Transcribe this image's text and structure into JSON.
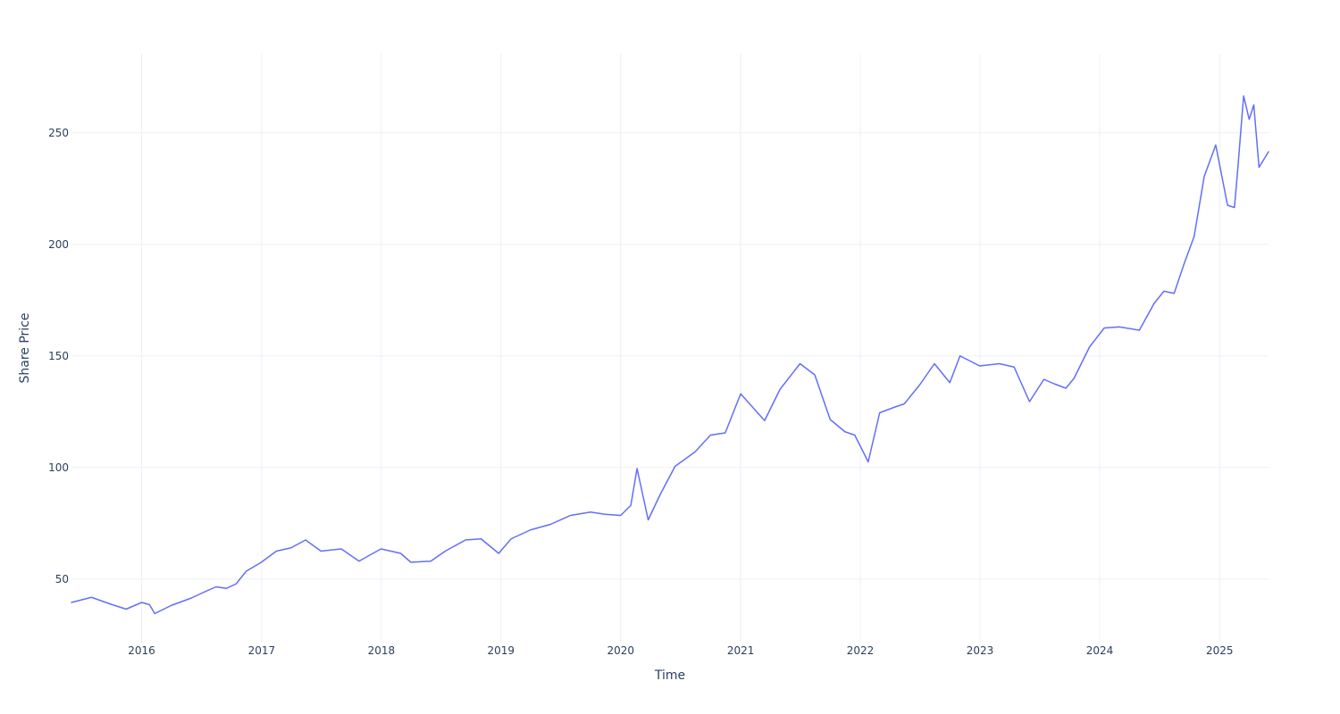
{
  "chart_data": {
    "type": "line",
    "title": "",
    "xlabel": "Time",
    "ylabel": "Share Price",
    "x_range": [
      "2015-06-01",
      "2025-05-30"
    ],
    "ylim": [
      21.5,
      285.5
    ],
    "x_tick_labels": [
      "2016",
      "2017",
      "2018",
      "2019",
      "2020",
      "2021",
      "2022",
      "2023",
      "2024",
      "2025"
    ],
    "y_ticks": [
      50,
      100,
      150,
      200,
      250
    ],
    "grid": true,
    "line_color": "#636efa",
    "series": [
      {
        "values": [
          [
            "2015-06-01",
            39.5
          ],
          [
            "2015-08-01",
            41.8
          ],
          [
            "2015-10-01",
            38.6
          ],
          [
            "2015-11-15",
            36.5
          ],
          [
            "2016-01-01",
            39.5
          ],
          [
            "2016-01-25",
            38.5
          ],
          [
            "2016-02-10",
            34.5
          ],
          [
            "2016-04-01",
            38.2
          ],
          [
            "2016-06-01",
            41.5
          ],
          [
            "2016-07-15",
            44.5
          ],
          [
            "2016-08-15",
            46.5
          ],
          [
            "2016-09-15",
            45.8
          ],
          [
            "2016-10-15",
            47.8
          ],
          [
            "2016-11-15",
            53.5
          ],
          [
            "2016-12-31",
            57.5
          ],
          [
            "2017-02-15",
            62.5
          ],
          [
            "2017-04-01",
            64.0
          ],
          [
            "2017-05-15",
            67.5
          ],
          [
            "2017-07-01",
            62.5
          ],
          [
            "2017-09-01",
            63.5
          ],
          [
            "2017-10-25",
            58.0
          ],
          [
            "2017-12-31",
            63.5
          ],
          [
            "2018-03-01",
            61.5
          ],
          [
            "2018-04-01",
            57.5
          ],
          [
            "2018-06-01",
            58.0
          ],
          [
            "2018-07-15",
            62.5
          ],
          [
            "2018-09-15",
            67.5
          ],
          [
            "2018-11-01",
            68.0
          ],
          [
            "2018-12-25",
            61.5
          ],
          [
            "2019-02-01",
            68.0
          ],
          [
            "2019-04-01",
            72.0
          ],
          [
            "2019-06-01",
            74.5
          ],
          [
            "2019-08-01",
            78.5
          ],
          [
            "2019-10-01",
            80.0
          ],
          [
            "2019-11-15",
            79.0
          ],
          [
            "2020-01-01",
            78.5
          ],
          [
            "2020-02-01",
            83.0
          ],
          [
            "2020-02-20",
            99.5
          ],
          [
            "2020-03-25",
            76.5
          ],
          [
            "2020-05-01",
            88.0
          ],
          [
            "2020-06-15",
            100.5
          ],
          [
            "2020-08-15",
            107.0
          ],
          [
            "2020-10-01",
            114.5
          ],
          [
            "2020-11-15",
            115.5
          ],
          [
            "2021-01-01",
            133.0
          ],
          [
            "2021-03-15",
            121.0
          ],
          [
            "2021-05-01",
            135.0
          ],
          [
            "2021-07-01",
            146.5
          ],
          [
            "2021-08-15",
            141.5
          ],
          [
            "2021-10-01",
            121.5
          ],
          [
            "2021-11-15",
            116.0
          ],
          [
            "2021-12-15",
            114.5
          ],
          [
            "2022-01-25",
            102.5
          ],
          [
            "2022-03-01",
            124.5
          ],
          [
            "2022-04-15",
            127.0
          ],
          [
            "2022-05-15",
            128.5
          ],
          [
            "2022-07-01",
            137.0
          ],
          [
            "2022-08-15",
            146.5
          ],
          [
            "2022-10-01",
            138.0
          ],
          [
            "2022-11-01",
            150.0
          ],
          [
            "2022-12-31",
            145.5
          ],
          [
            "2023-03-01",
            146.5
          ],
          [
            "2023-04-15",
            145.0
          ],
          [
            "2023-06-01",
            129.5
          ],
          [
            "2023-07-15",
            139.5
          ],
          [
            "2023-08-15",
            137.5
          ],
          [
            "2023-09-20",
            135.5
          ],
          [
            "2023-10-15",
            140.0
          ],
          [
            "2023-12-01",
            154.0
          ],
          [
            "2024-01-15",
            162.5
          ],
          [
            "2024-03-01",
            163.0
          ],
          [
            "2024-05-01",
            161.5
          ],
          [
            "2024-06-15",
            173.5
          ],
          [
            "2024-07-15",
            179.0
          ],
          [
            "2024-08-15",
            178.0
          ],
          [
            "2024-09-15",
            191.5
          ],
          [
            "2024-10-15",
            203.5
          ],
          [
            "2024-11-15",
            230.5
          ],
          [
            "2024-12-20",
            244.5
          ],
          [
            "2025-01-25",
            217.5
          ],
          [
            "2025-02-15",
            216.5
          ],
          [
            "2025-02-25",
            233.5
          ],
          [
            "2025-03-15",
            266.5
          ],
          [
            "2025-04-01",
            256.0
          ],
          [
            "2025-04-15",
            262.5
          ],
          [
            "2025-05-01",
            234.5
          ],
          [
            "2025-05-30",
            241.5
          ]
        ]
      }
    ]
  }
}
